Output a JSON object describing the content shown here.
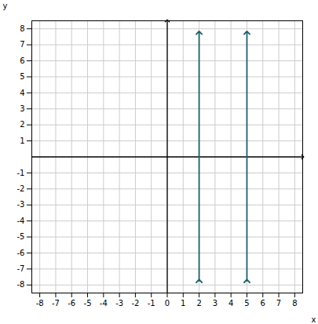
{
  "chart_data": {
    "type": "line",
    "xlabel": "x",
    "ylabel": "y",
    "xlim": [
      -8.5,
      8.5
    ],
    "ylim": [
      -8.5,
      8.5
    ],
    "xticks": [
      -8,
      -7,
      -6,
      -5,
      -4,
      -3,
      -2,
      -1,
      0,
      1,
      2,
      3,
      4,
      5,
      6,
      7,
      8
    ],
    "yticks": [
      -8,
      -7,
      -6,
      -5,
      -4,
      -3,
      -2,
      -1,
      1,
      2,
      3,
      4,
      5,
      6,
      7,
      8
    ],
    "grid": true,
    "marker": "arrow",
    "color": "#1f5f6b",
    "series": [
      {
        "x": [
          2,
          2
        ],
        "values": [
          -7.75,
          7.75
        ]
      },
      {
        "x": [
          5,
          5
        ],
        "values": [
          -7.75,
          7.75
        ]
      }
    ]
  }
}
